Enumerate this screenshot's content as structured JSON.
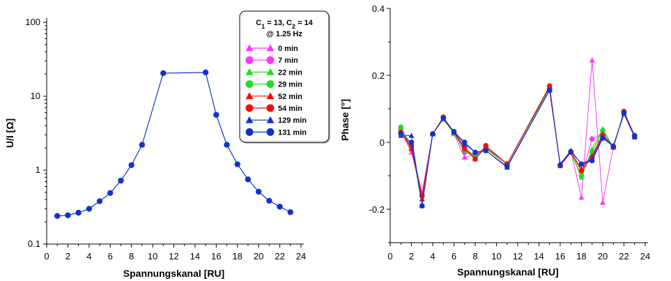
{
  "chart_data": [
    {
      "type": "line",
      "xlabel": "Spannungskanal [RU]",
      "ylabel": "U/I [Ω]",
      "xlim": [
        0,
        24
      ],
      "ylim": [
        0.1,
        100
      ],
      "yscale": "log",
      "x_ticks": [
        "0",
        "2",
        "4",
        "6",
        "8",
        "10",
        "12",
        "14",
        "16",
        "18",
        "20",
        "22",
        "24"
      ],
      "y_ticks": [
        "0.1",
        "1",
        "10",
        "100"
      ],
      "grid": false,
      "legend": {
        "title_line1": "C",
        "title_sub1": "1",
        "title_mid": " = 13, C",
        "title_sub2": "2",
        "title_end": " = 14",
        "title_line2": "@ 1.25 Hz",
        "placement": "top-right",
        "entries": [
          {
            "label": "0 min",
            "color": "#ff33ff",
            "marker": "triangle"
          },
          {
            "label": "7 min",
            "color": "#ff33ff",
            "marker": "circle"
          },
          {
            "label": "22 min",
            "color": "#22dd22",
            "marker": "triangle"
          },
          {
            "label": "29 min",
            "color": "#22dd22",
            "marker": "circle"
          },
          {
            "label": "52 min",
            "color": "#ee1111",
            "marker": "triangle"
          },
          {
            "label": "54 min",
            "color": "#ee1111",
            "marker": "circle"
          },
          {
            "label": "129 min",
            "color": "#1133cc",
            "marker": "triangle"
          },
          {
            "label": "131 min",
            "color": "#1133cc",
            "marker": "circle"
          }
        ]
      },
      "x": [
        1,
        2,
        3,
        4,
        5,
        6,
        7,
        8,
        9,
        11,
        15,
        16,
        17,
        18,
        19,
        20,
        21,
        22,
        23
      ],
      "series": [
        {
          "name": "131 min",
          "color": "#1133cc",
          "values": [
            0.24,
            0.245,
            0.265,
            0.3,
            0.38,
            0.49,
            0.72,
            1.17,
            2.2,
            20.5,
            21.0,
            5.6,
            2.2,
            1.2,
            0.75,
            0.51,
            0.385,
            0.32,
            0.27
          ]
        }
      ]
    },
    {
      "type": "line",
      "xlabel": "Spannungskanal [RU]",
      "ylabel": "Phase [°]",
      "xlim": [
        0,
        24
      ],
      "ylim": [
        -0.3,
        0.4
      ],
      "x_ticks": [
        "0",
        "2",
        "4",
        "6",
        "8",
        "10",
        "12",
        "14",
        "16",
        "18",
        "20",
        "22",
        "24"
      ],
      "y_ticks": [
        "-0.2",
        "0",
        "0.2",
        "0.4"
      ],
      "grid": false,
      "x": [
        1,
        2,
        3,
        4,
        5,
        6,
        7,
        8,
        9,
        11,
        15,
        16,
        17,
        18,
        19,
        20,
        21,
        22,
        23
      ],
      "series": [
        {
          "name": "0 min",
          "color": "#ff33ff",
          "marker": "triangle",
          "values": [
            0.035,
            -0.03,
            -0.15,
            0.025,
            0.07,
            0.025,
            -0.045,
            -0.035,
            -0.02,
            -0.065,
            0.165,
            -0.07,
            -0.025,
            -0.165,
            0.245,
            -0.18,
            -0.015,
            0.09,
            0.02
          ]
        },
        {
          "name": "7 min",
          "color": "#ff33ff",
          "marker": "circle",
          "values": [
            0.04,
            -0.02,
            -0.16,
            0.025,
            0.075,
            0.03,
            -0.03,
            -0.04,
            -0.015,
            -0.065,
            0.16,
            -0.07,
            -0.03,
            -0.1,
            0.01,
            0.025,
            -0.015,
            0.09,
            0.02
          ]
        },
        {
          "name": "22 min",
          "color": "#22dd22",
          "marker": "triangle",
          "values": [
            0.045,
            -0.02,
            -0.17,
            0.025,
            0.07,
            0.025,
            -0.025,
            -0.04,
            -0.02,
            -0.065,
            0.16,
            -0.07,
            -0.03,
            -0.105,
            -0.02,
            0.04,
            -0.015,
            0.085,
            0.02
          ]
        },
        {
          "name": "29 min",
          "color": "#22dd22",
          "marker": "circle",
          "values": [
            0.045,
            -0.015,
            -0.16,
            0.025,
            0.075,
            0.03,
            -0.02,
            -0.04,
            -0.015,
            -0.065,
            0.16,
            -0.07,
            -0.03,
            -0.1,
            -0.03,
            0.035,
            -0.015,
            0.09,
            0.02
          ]
        },
        {
          "name": "52 min",
          "color": "#ee1111",
          "marker": "triangle",
          "values": [
            0.03,
            -0.02,
            -0.17,
            0.025,
            0.07,
            0.03,
            -0.02,
            -0.05,
            -0.015,
            -0.065,
            0.165,
            -0.07,
            -0.03,
            -0.08,
            -0.04,
            0.025,
            -0.015,
            0.09,
            0.02
          ]
        },
        {
          "name": "54 min",
          "color": "#ee1111",
          "marker": "circle",
          "values": [
            0.03,
            -0.01,
            -0.16,
            0.025,
            0.075,
            0.03,
            -0.015,
            -0.05,
            -0.01,
            -0.065,
            0.168,
            -0.07,
            -0.03,
            -0.085,
            -0.045,
            0.02,
            -0.015,
            0.092,
            0.02
          ]
        },
        {
          "name": "129 min",
          "color": "#1133cc",
          "marker": "triangle",
          "values": [
            0.02,
            0.02,
            -0.19,
            0.025,
            0.07,
            0.03,
            -0.005,
            -0.03,
            -0.025,
            -0.075,
            0.155,
            -0.065,
            -0.025,
            -0.065,
            -0.05,
            0.015,
            -0.01,
            0.085,
            0.015
          ]
        },
        {
          "name": "131 min",
          "color": "#1133cc",
          "marker": "circle",
          "values": [
            0.025,
            0.0,
            -0.19,
            0.025,
            0.072,
            0.032,
            0.0,
            -0.03,
            -0.025,
            -0.072,
            0.155,
            -0.068,
            -0.028,
            -0.065,
            -0.055,
            0.012,
            -0.012,
            0.088,
            0.018
          ]
        }
      ]
    }
  ]
}
